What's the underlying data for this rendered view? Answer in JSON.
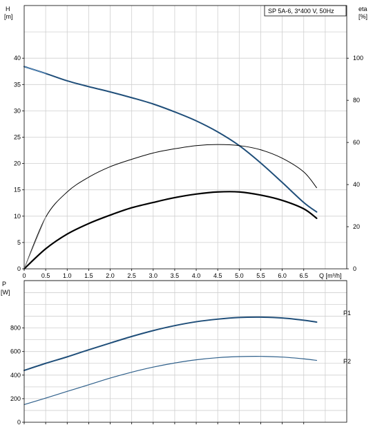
{
  "chart_data": {
    "type": "line",
    "title": "SP 5A-6, 3*400 V, 50Hz",
    "x": {
      "label": "Q [m³/h]",
      "range": [
        0,
        7.5
      ],
      "ticks": [
        0,
        0.5,
        1.0,
        1.5,
        2.0,
        2.5,
        3.0,
        3.5,
        4.0,
        4.5,
        5.0,
        5.5,
        6.0,
        6.5
      ],
      "tick_labels": [
        "0",
        "0.5",
        "1.0",
        "1.5",
        "2.0",
        "2.5",
        "3.0",
        "3.5",
        "4.0",
        "4.5",
        "5.0",
        "5.5",
        "6.0",
        "6.5"
      ]
    },
    "top_panel": {
      "left_axis": {
        "label_line1": "H",
        "label_line2": "[m]",
        "range": [
          0,
          50
        ],
        "ticks": [
          0,
          5,
          10,
          15,
          20,
          25,
          30,
          35,
          40
        ]
      },
      "right_axis": {
        "label_line1": "eta",
        "label_line2": "[%]",
        "range": [
          0,
          100
        ],
        "ticks": [
          0,
          20,
          40,
          60,
          80,
          100
        ]
      },
      "series": [
        {
          "name": "",
          "axis": "left",
          "color": "#1f4e79",
          "points": [
            [
              0,
              38.4
            ],
            [
              0.5,
              37.1
            ],
            [
              1.0,
              35.7
            ],
            [
              1.5,
              34.6
            ],
            [
              2.0,
              33.6
            ],
            [
              2.5,
              32.5
            ],
            [
              3.0,
              31.3
            ],
            [
              3.5,
              29.8
            ],
            [
              4.0,
              28.1
            ],
            [
              4.5,
              26.0
            ],
            [
              5.0,
              23.4
            ],
            [
              5.5,
              20.1
            ],
            [
              6.0,
              16.4
            ],
            [
              6.5,
              12.6
            ],
            [
              6.8,
              10.8
            ]
          ]
        },
        {
          "name": "",
          "axis": "left",
          "color": "#5a8fc4",
          "points": [
            [
              0,
              38.4
            ],
            [
              0.5,
              37.1
            ]
          ]
        },
        {
          "name": "",
          "axis": "right",
          "color": "#000000",
          "points": [
            [
              0,
              0
            ],
            [
              0.5,
              24.5
            ],
            [
              1.0,
              36.5
            ],
            [
              1.5,
              43.5
            ],
            [
              2.0,
              48.5
            ],
            [
              2.5,
              52.0
            ],
            [
              3.0,
              55.0
            ],
            [
              3.5,
              57.0
            ],
            [
              4.0,
              58.5
            ],
            [
              4.5,
              59.0
            ],
            [
              5.0,
              58.5
            ],
            [
              5.5,
              56.5
            ],
            [
              6.0,
              52.5
            ],
            [
              6.5,
              46.0
            ],
            [
              6.8,
              38.5
            ]
          ]
        },
        {
          "name": "",
          "axis": "right",
          "color": "#000000",
          "points": [
            [
              0,
              0
            ],
            [
              0.5,
              9.5
            ],
            [
              1.0,
              16.5
            ],
            [
              1.5,
              21.5
            ],
            [
              2.0,
              25.5
            ],
            [
              2.5,
              29.0
            ],
            [
              3.0,
              31.5
            ],
            [
              3.5,
              33.8
            ],
            [
              4.0,
              35.5
            ],
            [
              4.5,
              36.5
            ],
            [
              5.0,
              36.5
            ],
            [
              5.5,
              35.0
            ],
            [
              6.0,
              32.5
            ],
            [
              6.5,
              28.5
            ],
            [
              6.8,
              24.0
            ]
          ]
        },
        {
          "name": "",
          "axis": "right",
          "color": "#9a9a9a",
          "points": [
            [
              0,
              0
            ],
            [
              0.5,
              24.5
            ]
          ]
        }
      ]
    },
    "bottom_panel": {
      "left_axis": {
        "label_line1": "P",
        "label_line2": "[W]",
        "range": [
          0,
          1050
        ],
        "ticks": [
          0,
          200,
          400,
          600,
          800
        ]
      },
      "series": [
        {
          "name": "P1",
          "color": "#1f4e79",
          "points": [
            [
              0,
              440
            ],
            [
              0.5,
              500
            ],
            [
              1.0,
              555
            ],
            [
              1.5,
              615
            ],
            [
              2.0,
              672
            ],
            [
              2.5,
              728
            ],
            [
              3.0,
              778
            ],
            [
              3.5,
              820
            ],
            [
              4.0,
              853
            ],
            [
              4.5,
              875
            ],
            [
              5.0,
              889
            ],
            [
              5.5,
              892
            ],
            [
              6.0,
              885
            ],
            [
              6.5,
              866
            ],
            [
              6.8,
              850
            ]
          ]
        },
        {
          "name": "P2",
          "color": "#2e5f8a",
          "points": [
            [
              0,
              150
            ],
            [
              0.5,
              205
            ],
            [
              1.0,
              262
            ],
            [
              1.5,
              318
            ],
            [
              2.0,
              375
            ],
            [
              2.5,
              425
            ],
            [
              3.0,
              468
            ],
            [
              3.5,
              503
            ],
            [
              4.0,
              530
            ],
            [
              4.5,
              548
            ],
            [
              5.0,
              557
            ],
            [
              5.5,
              559
            ],
            [
              6.0,
              553
            ],
            [
              6.5,
              538
            ],
            [
              6.8,
              525
            ]
          ]
        }
      ]
    }
  }
}
